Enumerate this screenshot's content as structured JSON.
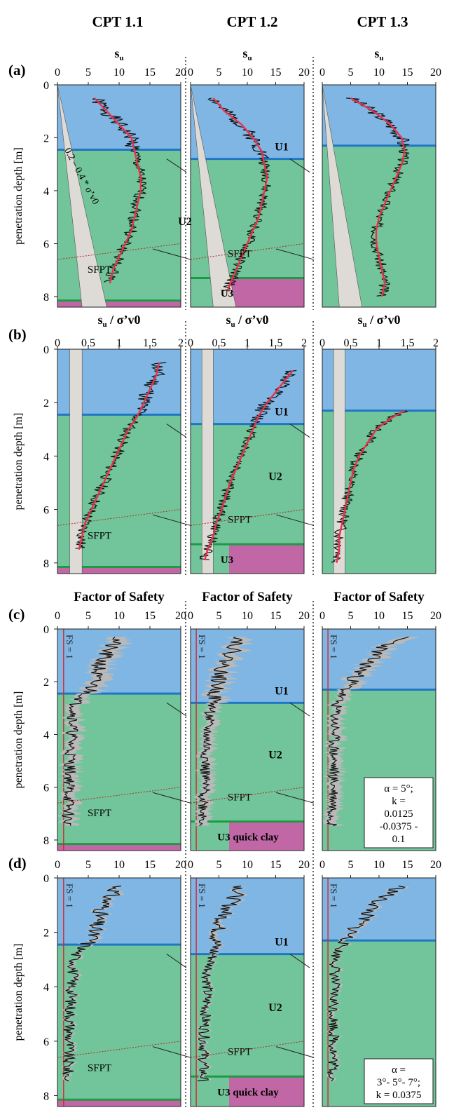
{
  "columns": [
    "CPT 1.1",
    "CPT 1.2",
    "CPT 1.3"
  ],
  "colors": {
    "U1": "#7fb6e4",
    "U2": "#72c59a",
    "U3": "#c167a6",
    "wedge": "#dedad5",
    "boundary_U1": "#1f77c4",
    "boundary_U3": "#1e9a44",
    "trend": "#e8334a",
    "fs_line": "#d7262e"
  },
  "panels": [
    {
      "letter": "(a)",
      "axis_title_main": "s",
      "axis_title_sub": "u",
      "axis_title_rest": "",
      "xticks": [
        "0",
        "5",
        "10",
        "15",
        "20"
      ],
      "ylabel": "penetration depth [m]",
      "yticks": [
        "0",
        "2",
        "4",
        "6",
        "8"
      ],
      "units": {
        "U1": "U1",
        "U2": "U2",
        "U3": "U3"
      },
      "wedge_label": "0.2 – 0.4 * σ’v0",
      "sfpt": [
        "SFPT",
        "SFPT"
      ]
    },
    {
      "letter": "(b)",
      "axis_title_main": "s",
      "axis_title_sub": "u",
      "axis_title_rest": " / σ’v0",
      "xticks": [
        "0",
        "0.5",
        "1",
        "1.5",
        "2"
      ],
      "ylabel": "penetration depth [m]",
      "yticks": [
        "0",
        "2",
        "4",
        "6",
        "8"
      ],
      "units": {
        "U1": "U1",
        "U2": "U2",
        "U3": "U3"
      },
      "sfpt": [
        "SFPT",
        "SFPT"
      ]
    },
    {
      "letter": "(c)",
      "axis_title_main": "Factor of Safety",
      "xticks": [
        "0",
        "5",
        "10",
        "15",
        "20"
      ],
      "ylabel": "penetration depth [m]",
      "yticks": [
        "0",
        "2",
        "4",
        "6",
        "8"
      ],
      "units": {
        "U1": "U1",
        "U2": "U2",
        "U3": "U3 quick clay"
      },
      "fs_label": "FS = 1",
      "sfpt": [
        "SFPT",
        "SFPT"
      ],
      "note": [
        "α = 5°;",
        "k =",
        "0.0125",
        "-0.0375 -",
        "0.1"
      ]
    },
    {
      "letter": "(d)",
      "xticks": [
        "0",
        "5",
        "10",
        "15",
        "20"
      ],
      "ylabel": "penetration depth [m]",
      "yticks": [
        "0",
        "2",
        "4",
        "6",
        "8"
      ],
      "units": {
        "U1": "U1",
        "U2": "U2",
        "U3": "U3 quick clay"
      },
      "fs_label": "FS = 1",
      "sfpt": [
        "SFPT",
        "SFPT"
      ],
      "note": [
        "α =",
        "3°- 5°- 7°;",
        "k = 0.0375"
      ]
    }
  ],
  "chart_data": {
    "type": "line",
    "layout": "4 rows (a–d) × 3 columns (CPT 1.1, 1.2, 1.3); y axis penetration depth [m] 0–8.4 (inverted)",
    "ylabel": "penetration depth [m]",
    "ylim": [
      0,
      8.4
    ],
    "units_boundaries": {
      "U1_U2_depth": {
        "CPT 1.1": 2.45,
        "CPT 1.2": 2.8,
        "CPT 1.3": 2.3
      },
      "U2_U3_depth": {
        "CPT 1.1": 8.15,
        "CPT 1.2": 7.3,
        "CPT 1.3": null
      }
    },
    "panels": {
      "a": {
        "xlabel": "su",
        "xlim": [
          0,
          20
        ],
        "series": [
          {
            "column": "CPT 1.1",
            "trend": {
              "depth": [
                0.5,
                1.0,
                1.5,
                2.0,
                2.5,
                3.0,
                3.5,
                4.0,
                4.5,
                5.0,
                5.5,
                6.0,
                6.5,
                7.0,
                7.5
              ],
              "value": [
                6,
                8,
                10,
                12,
                12.5,
                13,
                13.5,
                13.5,
                13,
                12.5,
                12,
                11,
                10,
                9,
                8.5
              ]
            }
          },
          {
            "column": "CPT 1.2",
            "trend": {
              "depth": [
                0.5,
                1.0,
                1.5,
                2.0,
                2.5,
                3.0,
                3.5,
                4.0,
                4.5,
                5.0,
                5.5,
                6.0,
                6.5,
                7.0,
                7.5,
                7.8
              ],
              "value": [
                4,
                6,
                9,
                11,
                12.5,
                13,
                13.5,
                13,
                12.5,
                12,
                11,
                10,
                9,
                8,
                7,
                6.5
              ]
            }
          },
          {
            "column": "CPT 1.3",
            "trend": {
              "depth": [
                0.5,
                1.0,
                1.5,
                2.0,
                2.5,
                3.0,
                3.5,
                4.0,
                4.5,
                5.0,
                5.5,
                6.0,
                6.5,
                7.0,
                7.5,
                8.0
              ],
              "value": [
                5,
                9,
                12,
                14,
                14.5,
                14,
                13,
                12,
                11,
                10,
                9.5,
                9.5,
                10,
                10.5,
                11,
                10.5
              ]
            }
          }
        ]
      },
      "b": {
        "xlabel": "su / σ’v0",
        "xlim": [
          0,
          2
        ],
        "series": [
          {
            "column": "CPT 1.1",
            "trend": {
              "depth": [
                0.5,
                1.0,
                1.5,
                2.0,
                2.5,
                3.0,
                3.5,
                4.0,
                4.5,
                5.0,
                5.5,
                6.0,
                6.5,
                7.0,
                7.5
              ],
              "value": [
                1.65,
                1.6,
                1.5,
                1.4,
                1.3,
                1.15,
                1.05,
                0.95,
                0.85,
                0.75,
                0.65,
                0.55,
                0.45,
                0.4,
                0.35
              ]
            }
          },
          {
            "column": "CPT 1.2",
            "trend": {
              "depth": [
                0.8,
                1.2,
                1.6,
                2.0,
                2.5,
                3.0,
                3.5,
                4.0,
                4.5,
                5.0,
                5.5,
                6.0,
                6.5,
                7.0,
                7.5,
                7.9
              ],
              "value": [
                1.8,
                1.65,
                1.5,
                1.35,
                1.2,
                1.1,
                1.0,
                0.9,
                0.8,
                0.7,
                0.62,
                0.55,
                0.45,
                0.4,
                0.3,
                0.25
              ]
            }
          },
          {
            "column": "CPT 1.3",
            "trend": {
              "depth": [
                2.3,
                2.6,
                3.0,
                3.5,
                4.0,
                4.5,
                5.0,
                5.5,
                6.0,
                6.5,
                7.0,
                7.5,
                8.0
              ],
              "value": [
                1.45,
                1.2,
                0.95,
                0.8,
                0.65,
                0.55,
                0.5,
                0.45,
                0.4,
                0.35,
                0.3,
                0.3,
                0.25
              ]
            }
          }
        ]
      },
      "c": {
        "xlabel": "Factor of Safety",
        "xlim": [
          0,
          20
        ],
        "fs_line": 1,
        "series": [
          {
            "column": "CPT 1.1",
            "mean": {
              "depth": [
                0.3,
                0.8,
                1.3,
                1.8,
                2.3,
                2.8,
                3.5,
                4.5,
                5.5,
                6.5,
                7.5
              ],
              "value": [
                10,
                8,
                7,
                6,
                5.5,
                3,
                2.5,
                2.2,
                2,
                1.8,
                1.6
              ]
            }
          },
          {
            "column": "CPT 1.2",
            "mean": {
              "depth": [
                0.3,
                0.8,
                1.3,
                1.8,
                2.3,
                2.8,
                3.5,
                4.5,
                5.5,
                6.5,
                7.5
              ],
              "value": [
                9,
                7.5,
                6,
                5,
                4.5,
                4,
                3,
                2.8,
                2.5,
                2.3,
                2.2
              ]
            }
          },
          {
            "column": "CPT 1.3",
            "mean": {
              "depth": [
                0.3,
                0.8,
                1.3,
                1.8,
                2.3,
                2.8,
                3.5,
                4.5,
                5.5,
                6.5,
                7.5
              ],
              "value": [
                14,
                10,
                8,
                6,
                4,
                2.5,
                2.2,
                2,
                2,
                2,
                1.8
              ]
            }
          }
        ]
      },
      "d": {
        "xlabel": "Factor of Safety",
        "xlim": [
          0,
          20
        ],
        "fs_line": 1,
        "series": [
          {
            "column": "CPT 1.1",
            "mean": {
              "depth": [
                0.3,
                0.8,
                1.3,
                1.8,
                2.3,
                2.8,
                3.5,
                4.5,
                5.5,
                6.5,
                7.5
              ],
              "value": [
                10,
                8,
                7,
                6,
                5.5,
                3,
                2.5,
                2.2,
                2,
                1.8,
                1.6
              ]
            }
          },
          {
            "column": "CPT 1.2",
            "mean": {
              "depth": [
                0.3,
                0.8,
                1.3,
                1.8,
                2.3,
                2.8,
                3.5,
                4.5,
                5.5,
                6.5,
                7.5
              ],
              "value": [
                9,
                7.5,
                6,
                5,
                4.5,
                4,
                3,
                2.8,
                2.5,
                2.3,
                2.2
              ]
            }
          },
          {
            "column": "CPT 1.3",
            "mean": {
              "depth": [
                0.3,
                0.8,
                1.3,
                1.8,
                2.3,
                2.8,
                3.5,
                4.5,
                5.5,
                6.5,
                7.5
              ],
              "value": [
                14,
                10,
                8,
                6,
                4,
                2.5,
                2.2,
                2,
                2,
                2,
                1.8
              ]
            }
          }
        ]
      }
    }
  }
}
